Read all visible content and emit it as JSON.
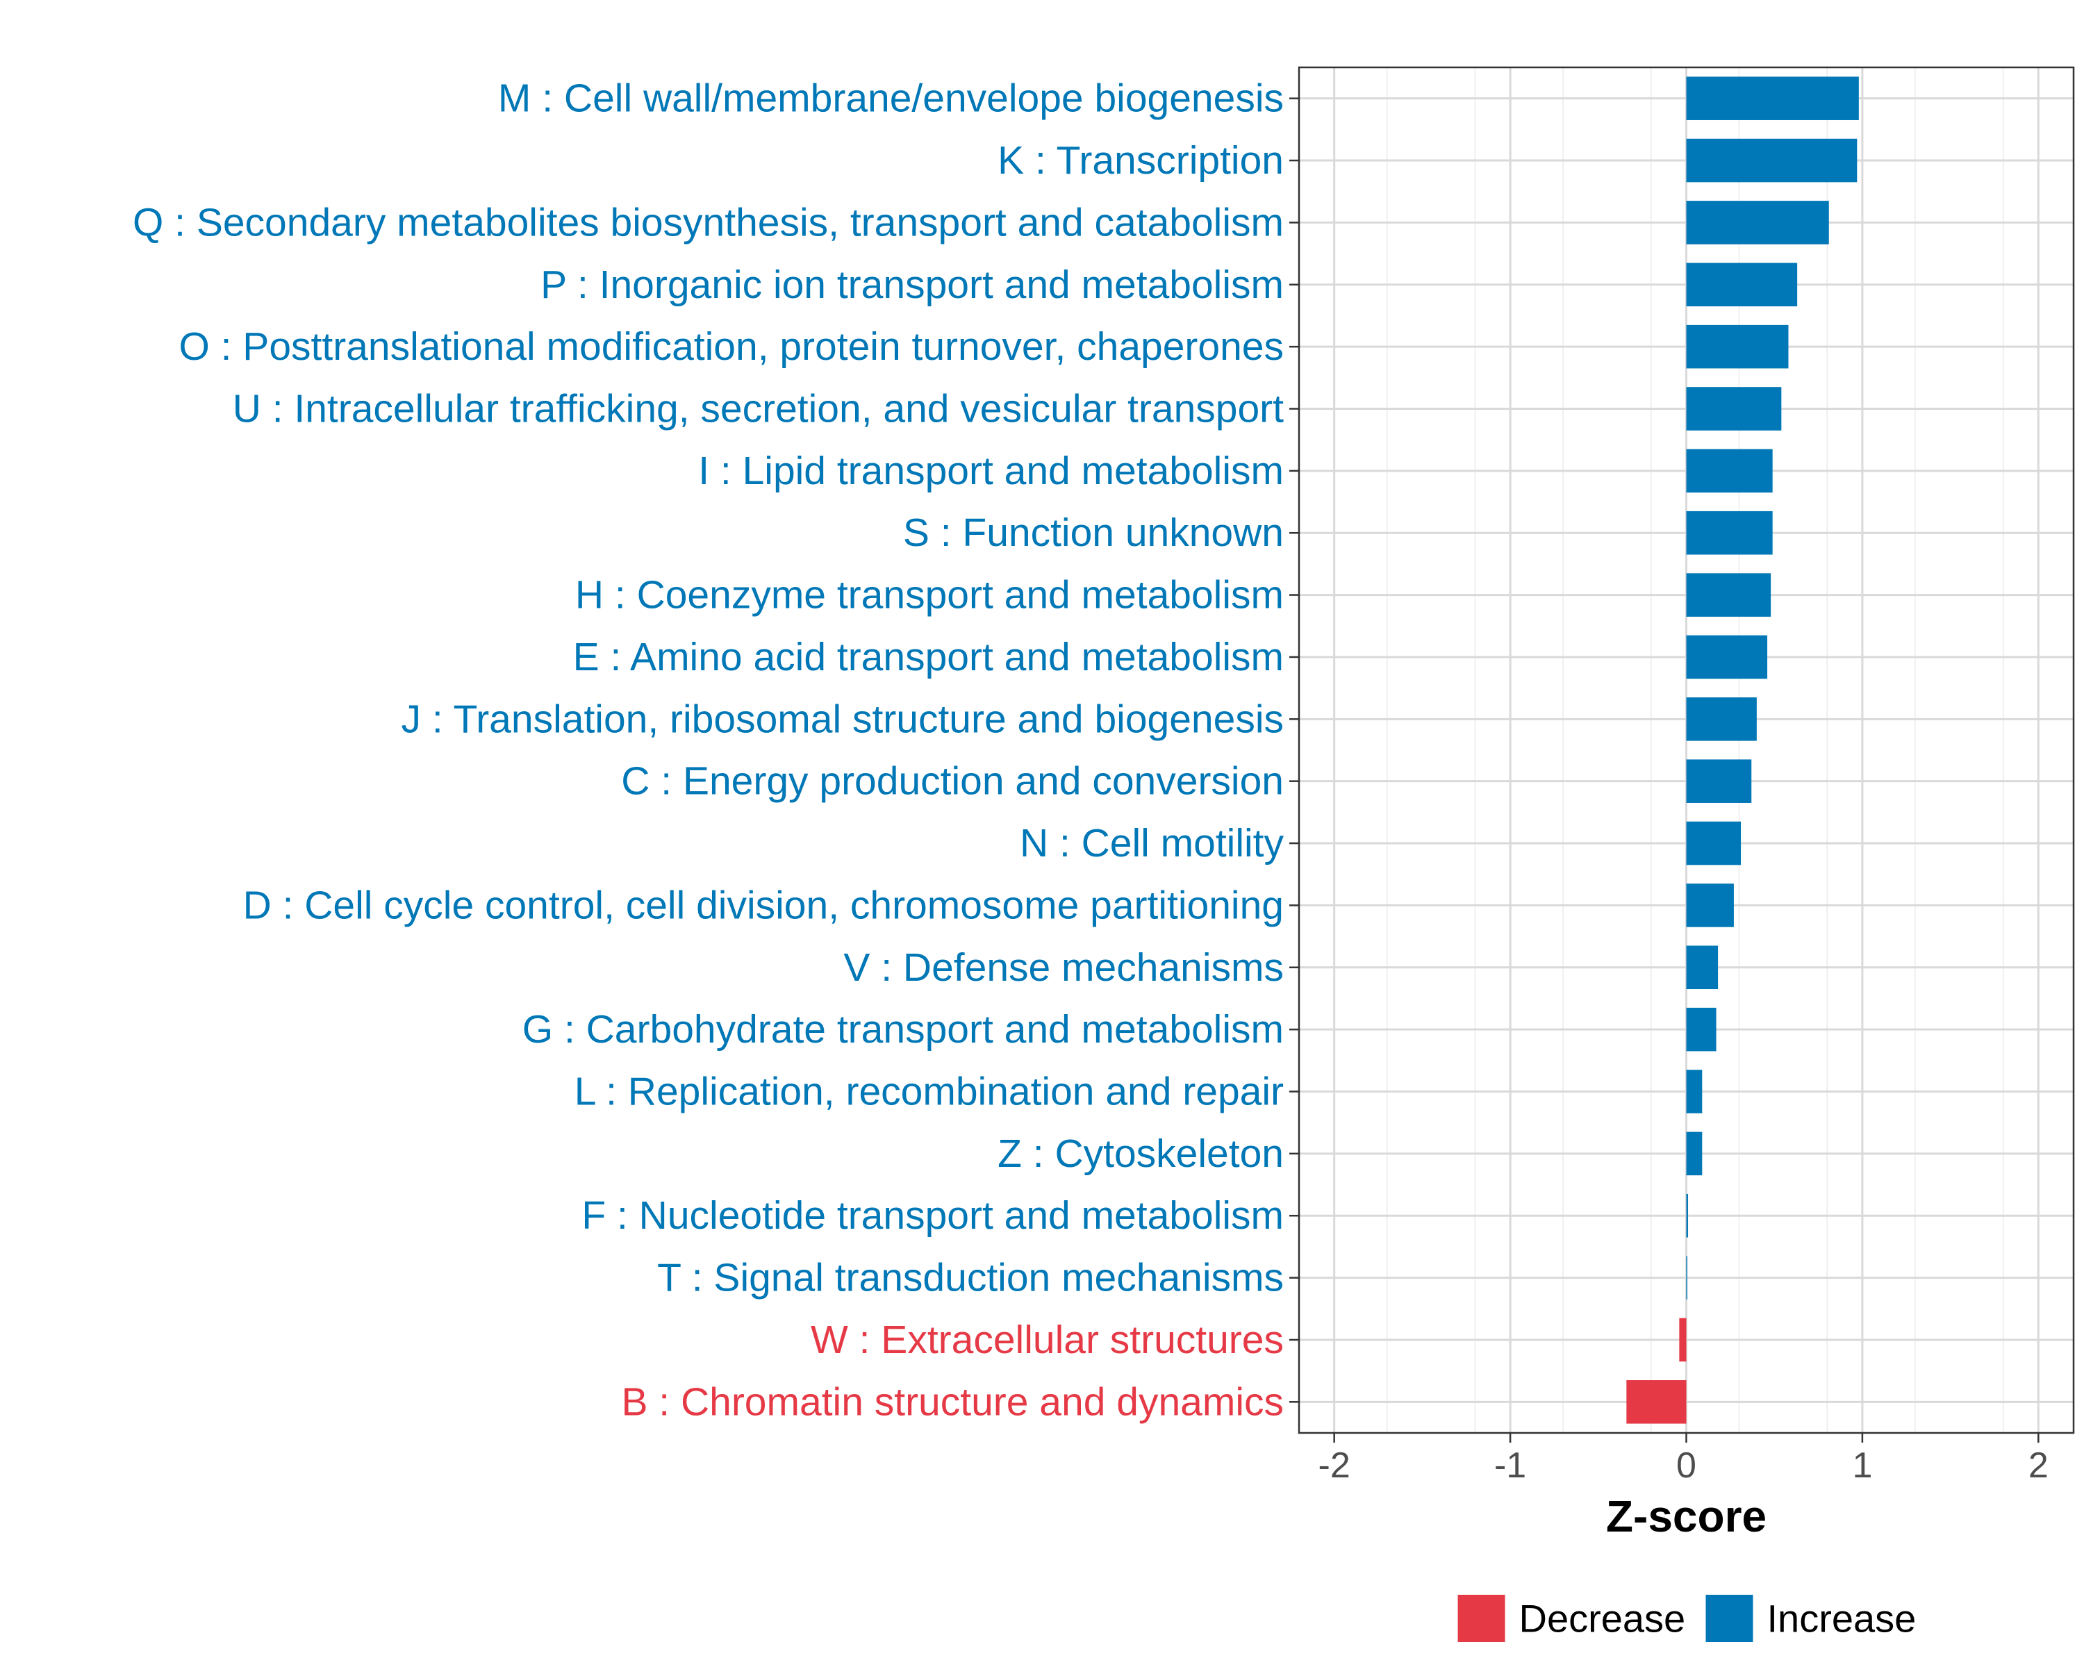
{
  "chart_data": {
    "type": "bar",
    "orientation": "horizontal",
    "xlabel": "Z-score",
    "ylabel": "",
    "xlim": [
      -2.2,
      2.2
    ],
    "xticks": [
      -2,
      -1,
      0,
      1,
      2
    ],
    "xtick_labels": [
      "-2",
      "-1",
      "0",
      "1",
      "2"
    ],
    "grid": true,
    "colors": {
      "Decrease": "#E63946",
      "Increase": "#0077B6"
    },
    "legend": {
      "placement": "bottom",
      "entries": [
        {
          "label": "Decrease",
          "color": "#E63946"
        },
        {
          "label": "Increase",
          "color": "#0077B6"
        }
      ]
    },
    "categories": [
      {
        "label": "M : Cell wall/membrane/envelope biogenesis",
        "value": 0.98,
        "direction": "Increase"
      },
      {
        "label": "K : Transcription",
        "value": 0.97,
        "direction": "Increase"
      },
      {
        "label": "Q : Secondary metabolites biosynthesis, transport and catabolism",
        "value": 0.81,
        "direction": "Increase"
      },
      {
        "label": "P : Inorganic ion transport and metabolism",
        "value": 0.63,
        "direction": "Increase"
      },
      {
        "label": "O : Posttranslational modification, protein turnover, chaperones",
        "value": 0.58,
        "direction": "Increase"
      },
      {
        "label": "U : Intracellular trafficking, secretion, and vesicular transport",
        "value": 0.54,
        "direction": "Increase"
      },
      {
        "label": "I : Lipid transport and metabolism",
        "value": 0.49,
        "direction": "Increase"
      },
      {
        "label": "S : Function unknown",
        "value": 0.49,
        "direction": "Increase"
      },
      {
        "label": "H : Coenzyme transport and metabolism",
        "value": 0.48,
        "direction": "Increase"
      },
      {
        "label": "E : Amino acid transport and metabolism",
        "value": 0.46,
        "direction": "Increase"
      },
      {
        "label": "J : Translation, ribosomal structure and biogenesis",
        "value": 0.4,
        "direction": "Increase"
      },
      {
        "label": "C : Energy production and conversion",
        "value": 0.37,
        "direction": "Increase"
      },
      {
        "label": "N : Cell motility",
        "value": 0.31,
        "direction": "Increase"
      },
      {
        "label": "D : Cell cycle control, cell division, chromosome partitioning",
        "value": 0.27,
        "direction": "Increase"
      },
      {
        "label": "V : Defense mechanisms",
        "value": 0.18,
        "direction": "Increase"
      },
      {
        "label": "G : Carbohydrate transport and metabolism",
        "value": 0.17,
        "direction": "Increase"
      },
      {
        "label": "L : Replication, recombination and repair",
        "value": 0.09,
        "direction": "Increase"
      },
      {
        "label": "Z : Cytoskeleton",
        "value": 0.09,
        "direction": "Increase"
      },
      {
        "label": "F : Nucleotide transport and metabolism",
        "value": 0.01,
        "direction": "Increase"
      },
      {
        "label": "T : Signal transduction mechanisms",
        "value": 0.005,
        "direction": "Increase"
      },
      {
        "label": "W : Extracellular structures",
        "value": -0.04,
        "direction": "Decrease"
      },
      {
        "label": "B : Chromatin structure and dynamics",
        "value": -0.34,
        "direction": "Decrease"
      }
    ]
  }
}
